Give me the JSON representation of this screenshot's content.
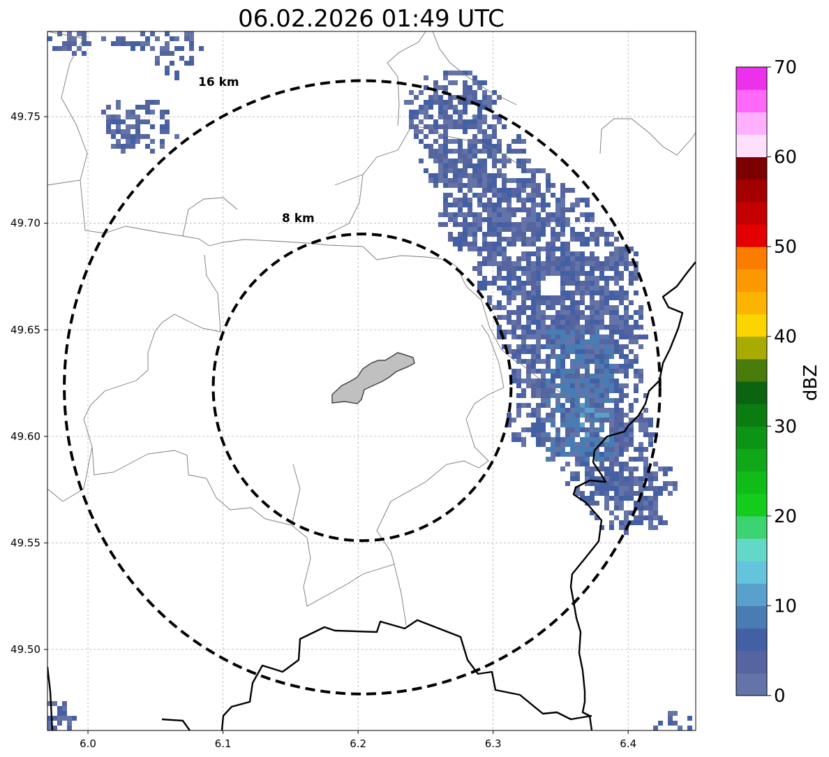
{
  "title": "06.02.2026 01:49 UTC",
  "map": {
    "lon_range": [
      5.97,
      6.45
    ],
    "lat_range": [
      49.462,
      49.79
    ],
    "x_ticks": [
      {
        "value": 6.0,
        "label": "6.0"
      },
      {
        "value": 6.1,
        "label": "6.1"
      },
      {
        "value": 6.2,
        "label": "6.2"
      },
      {
        "value": 6.3,
        "label": "6.3"
      },
      {
        "value": 6.4,
        "label": "6.4"
      }
    ],
    "y_ticks": [
      {
        "value": 49.5,
        "label": "49.50"
      },
      {
        "value": 49.55,
        "label": "49.55"
      },
      {
        "value": 49.6,
        "label": "49.60"
      },
      {
        "value": 49.65,
        "label": "49.65"
      },
      {
        "value": 49.7,
        "label": "49.70"
      },
      {
        "value": 49.75,
        "label": "49.75"
      }
    ],
    "grid": true,
    "center": {
      "lon": 6.203,
      "lat": 49.623
    },
    "range_rings": [
      {
        "label": "8 km",
        "radius_km": 8
      },
      {
        "label": "16 km",
        "radius_km": 16
      }
    ]
  },
  "colorbar": {
    "label": "dBZ",
    "ticks": [
      "0",
      "10",
      "20",
      "30",
      "40",
      "50",
      "60",
      "70"
    ],
    "min": 0,
    "max": 70,
    "step": 2.5,
    "colors": [
      "#6474a8",
      "#5664a0",
      "#4460a4",
      "#4a7cb4",
      "#5aa0cc",
      "#64c4dc",
      "#64d8c8",
      "#3cd470",
      "#14cc1c",
      "#10bc18",
      "#10a818",
      "#0c9414",
      "#0a7c10",
      "#0a6410",
      "#4a7c0c",
      "#a8ac00",
      "#fcd400",
      "#fcb400",
      "#fc9800",
      "#fc7c00",
      "#e40000",
      "#c40000",
      "#a40000",
      "#7c0000",
      "#ffe0fc",
      "#ffb0fc",
      "#ff68f8",
      "#ec30ec"
    ]
  },
  "colors": {
    "rings": "#000000",
    "city_fill": "#c0c0c0",
    "border_thick": "#000000",
    "border_thin": "#777777"
  }
}
